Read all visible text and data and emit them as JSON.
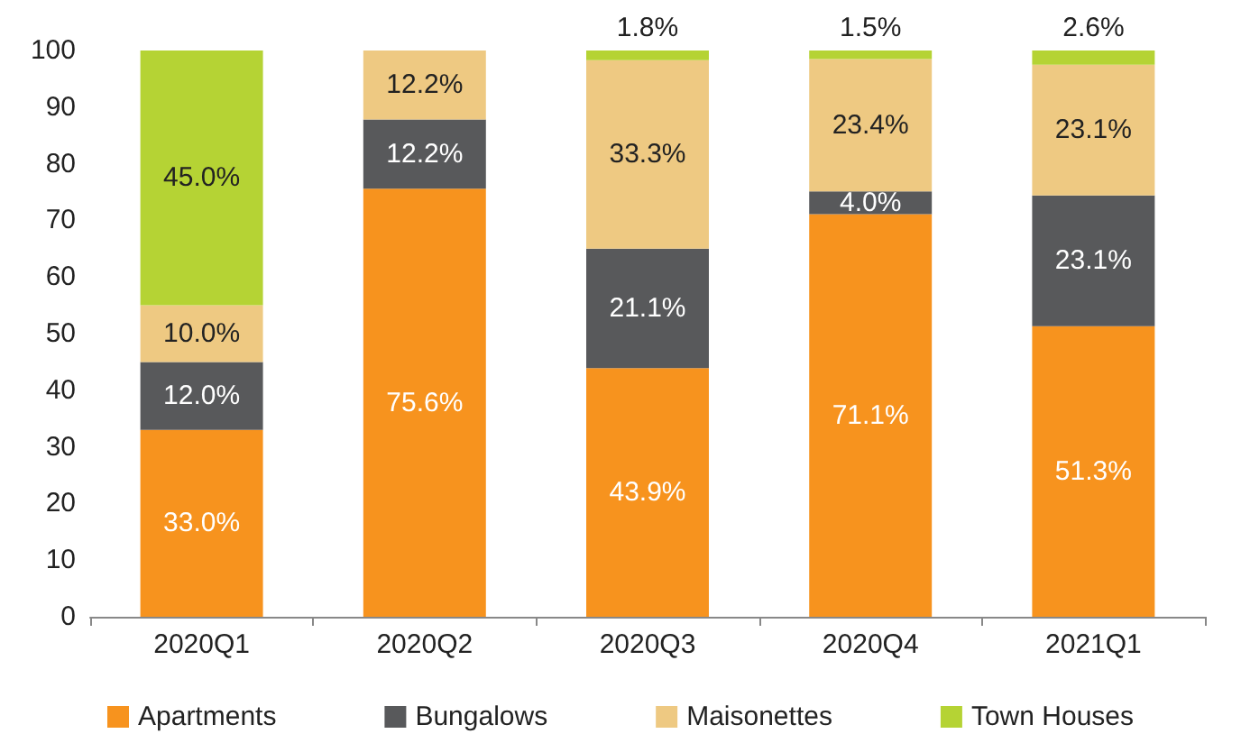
{
  "chart_data": {
    "type": "bar",
    "stacked": true,
    "categories": [
      "2020Q1",
      "2020Q2",
      "2020Q3",
      "2020Q4",
      "2021Q1"
    ],
    "series": [
      {
        "name": "Apartments",
        "color": "#f7931e",
        "values": [
          33.0,
          75.6,
          43.9,
          71.1,
          51.3
        ],
        "value_labels": [
          "33.0%",
          "75.6%",
          "43.9%",
          "71.1%",
          "51.3%"
        ]
      },
      {
        "name": "Bungalows",
        "color": "#58595b",
        "values": [
          12.0,
          12.2,
          21.1,
          4.0,
          23.1
        ],
        "value_labels": [
          "12.0%",
          "12.2%",
          "21.1%",
          "4.0%",
          "23.1%"
        ]
      },
      {
        "name": "Maisonettes",
        "color": "#eec982",
        "values": [
          10.0,
          12.2,
          33.3,
          23.4,
          23.1
        ],
        "value_labels": [
          "10.0%",
          "12.2%",
          "33.3%",
          "23.4%",
          "23.1%"
        ]
      },
      {
        "name": "Town Houses",
        "color": "#b5d334",
        "values": [
          45.0,
          null,
          1.8,
          1.5,
          2.6
        ],
        "value_labels": [
          "45.0%",
          null,
          "1.8%",
          "1.5%",
          "2.6%"
        ]
      }
    ],
    "ylim": [
      0,
      100
    ],
    "yticks": [
      0,
      10,
      20,
      30,
      40,
      50,
      60,
      70,
      80,
      90,
      100
    ],
    "grid": false,
    "legend": "bottom"
  }
}
